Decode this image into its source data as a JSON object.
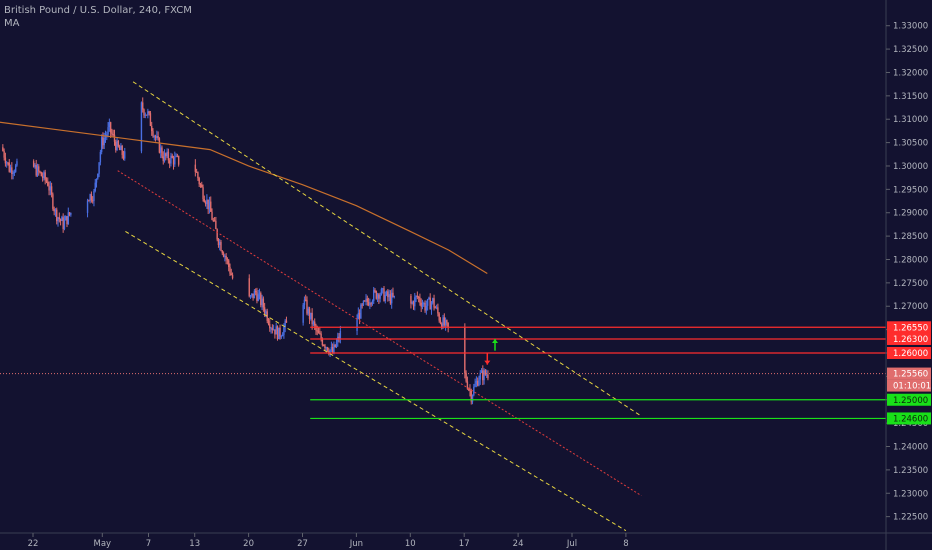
{
  "header": {
    "title": "British Pound / U.S. Dollar, 240, FXCM",
    "indicator": "MA"
  },
  "countdown": "01:10:01",
  "colors": {
    "background": "#131230",
    "up_candle": "#4a6fe3",
    "down_candle": "#e06d6d",
    "ma_line": "#c8702c",
    "channel": "#e6d441",
    "mid_channel": "#e03c3c",
    "resistance": "#ff2d2d",
    "support": "#19e019",
    "price_line": "#e06d6d",
    "arrow_up": "#19e019",
    "arrow_down": "#ff2d2d"
  },
  "chart_data": {
    "type": "candlestick",
    "title": "British Pound / U.S. Dollar, 240, FXCM",
    "ylim": [
      1.2215,
      1.3355
    ],
    "y_ticks": [
      "1.33000",
      "1.32500",
      "1.32000",
      "1.31500",
      "1.31000",
      "1.30500",
      "1.30000",
      "1.29500",
      "1.29000",
      "1.28500",
      "1.28000",
      "1.27500",
      "1.27000",
      "1.26500",
      "1.26000",
      "1.25500",
      "1.25000",
      "1.24500",
      "1.24000",
      "1.23500",
      "1.23000",
      "1.22500"
    ],
    "x_ticks": [
      {
        "label": "22",
        "date": "2019-04-22"
      },
      {
        "label": "May",
        "date": "2019-05-01"
      },
      {
        "label": "7",
        "date": "2019-05-07"
      },
      {
        "label": "13",
        "date": "2019-05-13"
      },
      {
        "label": "20",
        "date": "2019-05-20"
      },
      {
        "label": "27",
        "date": "2019-05-27"
      },
      {
        "label": "Jun",
        "date": "2019-06-03"
      },
      {
        "label": "10",
        "date": "2019-06-10"
      },
      {
        "label": "17",
        "date": "2019-06-17"
      },
      {
        "label": "24",
        "date": "2019-06-24"
      },
      {
        "label": "Jul",
        "date": "2019-07-01"
      },
      {
        "label": "8",
        "date": "2019-07-08"
      }
    ],
    "price_path": [
      [
        "2019-04-18",
        1.304
      ],
      [
        "2019-04-19",
        1.2995
      ],
      [
        "2019-04-22",
        1.3
      ],
      [
        "2019-04-24",
        1.2965
      ],
      [
        "2019-04-25",
        1.29
      ],
      [
        "2019-04-26",
        1.2875
      ],
      [
        "2019-04-28",
        1.2925
      ],
      [
        "2019-04-30",
        1.294
      ],
      [
        "2019-05-01",
        1.305
      ],
      [
        "2019-05-02",
        1.308
      ],
      [
        "2019-05-03",
        1.304
      ],
      [
        "2019-05-04",
        1.302
      ],
      [
        "2019-05-05",
        1.3165
      ],
      [
        "2019-05-06",
        1.313
      ],
      [
        "2019-05-07",
        1.311
      ],
      [
        "2019-05-08",
        1.306
      ],
      [
        "2019-05-09",
        1.302
      ],
      [
        "2019-05-11",
        1.301
      ],
      [
        "2019-05-13",
        1.3
      ],
      [
        "2019-05-14",
        1.295
      ],
      [
        "2019-05-15",
        1.291
      ],
      [
        "2019-05-16",
        1.285
      ],
      [
        "2019-05-17",
        1.281
      ],
      [
        "2019-05-18",
        1.276
      ],
      [
        "2019-05-19",
        1.274
      ],
      [
        "2019-05-20",
        1.271
      ],
      [
        "2019-05-21",
        1.273
      ],
      [
        "2019-05-22",
        1.27
      ],
      [
        "2019-05-23",
        1.266
      ],
      [
        "2019-05-24",
        1.264
      ],
      [
        "2019-05-25",
        1.266
      ],
      [
        "2019-05-26",
        1.27
      ],
      [
        "2019-05-27",
        1.272
      ],
      [
        "2019-05-28",
        1.268
      ],
      [
        "2019-05-29",
        1.264
      ],
      [
        "2019-05-30",
        1.262
      ],
      [
        "2019-05-31",
        1.26
      ],
      [
        "2019-06-01",
        1.264
      ],
      [
        "2019-06-02",
        1.266
      ],
      [
        "2019-06-03",
        1.267
      ],
      [
        "2019-06-04",
        1.27
      ],
      [
        "2019-06-05",
        1.272
      ],
      [
        "2019-06-06",
        1.273
      ],
      [
        "2019-06-07",
        1.272
      ],
      [
        "2019-06-09",
        1.271
      ],
      [
        "2019-06-10",
        1.27
      ],
      [
        "2019-06-11",
        1.272
      ],
      [
        "2019-06-12",
        1.27
      ],
      [
        "2019-06-13",
        1.271
      ],
      [
        "2019-06-14",
        1.267
      ],
      [
        "2019-06-15",
        1.265
      ],
      [
        "2019-06-16",
        1.259
      ],
      [
        "2019-06-17",
        1.256
      ],
      [
        "2019-06-18",
        1.251
      ],
      [
        "2019-06-19",
        1.255
      ],
      [
        "2019-06-20",
        1.2556
      ]
    ],
    "ma_line": [
      [
        "2019-04-17",
        1.3095
      ],
      [
        "2019-04-24",
        1.308
      ],
      [
        "2019-05-01",
        1.3065
      ],
      [
        "2019-05-08",
        1.305
      ],
      [
        "2019-05-15",
        1.3035
      ],
      [
        "2019-05-20",
        1.3
      ],
      [
        "2019-05-27",
        1.296
      ],
      [
        "2019-06-03",
        1.2915
      ],
      [
        "2019-06-10",
        1.286
      ],
      [
        "2019-06-15",
        1.282
      ],
      [
        "2019-06-20",
        1.277
      ]
    ],
    "channel_upper": [
      [
        "2019-05-05",
        1.318
      ],
      [
        "2019-07-10",
        1.2465
      ]
    ],
    "channel_lower": [
      [
        "2019-05-04",
        1.286
      ],
      [
        "2019-07-08",
        1.222
      ]
    ],
    "mid_line": [
      [
        "2019-05-03",
        1.299
      ],
      [
        "2019-07-10",
        1.2295
      ]
    ],
    "levels": [
      {
        "label": "1.26550",
        "value": 1.2655,
        "type": "resistance",
        "from": "2019-05-28"
      },
      {
        "label": "1.26300",
        "value": 1.263,
        "type": "resistance",
        "from": "2019-05-28"
      },
      {
        "label": "1.26000",
        "value": 1.26,
        "type": "resistance",
        "from": "2019-05-28"
      },
      {
        "label": "1.25000",
        "value": 1.25,
        "type": "support",
        "from": "2019-05-28"
      },
      {
        "label": "1.24600",
        "value": 1.246,
        "type": "support",
        "from": "2019-05-28"
      }
    ],
    "current_price": {
      "label": "1.25560",
      "value": 1.2556
    },
    "arrows": [
      {
        "direction": "up",
        "date": "2019-06-21",
        "from": 1.2605,
        "to": 1.263
      },
      {
        "direction": "down",
        "date": "2019-06-20",
        "from": 1.26,
        "to": 1.2575
      }
    ]
  }
}
